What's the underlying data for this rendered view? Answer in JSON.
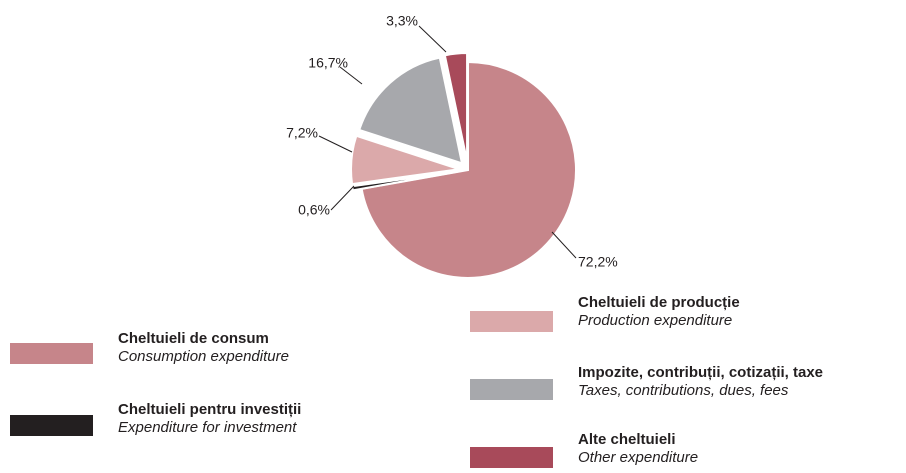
{
  "chart_data": {
    "type": "pie",
    "categories": [
      "Cheltuieli de consum",
      "Cheltuieli pentru investiții",
      "Cheltuieli de producție",
      "Impozite, contribuții, cotizații, taxe",
      "Alte cheltuieli"
    ],
    "category_translations": [
      "Consumption expenditure",
      "Expenditure for investment",
      "Production expenditure",
      "Taxes, contributions, dues, fees",
      "Other expenditure"
    ],
    "values": [
      72.2,
      0.6,
      7.2,
      16.7,
      3.3
    ],
    "value_labels": [
      "72,2%",
      "0,6%",
      "7,2%",
      "16,7%",
      "3,3%"
    ],
    "colors": [
      "#c6858a",
      "#231f20",
      "#dba9aa",
      "#a7a8ac",
      "#a84a5a"
    ]
  }
}
